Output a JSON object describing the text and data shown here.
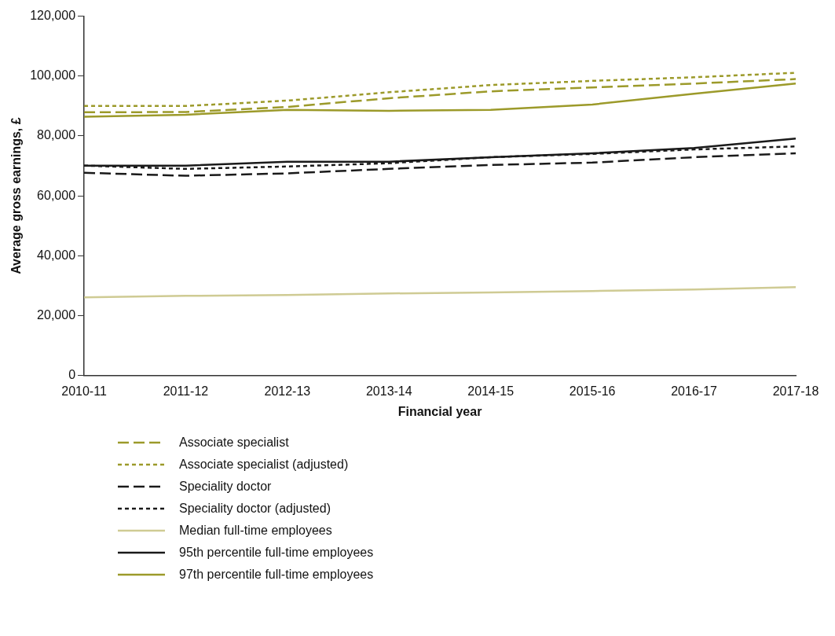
{
  "chart_data": {
    "type": "line",
    "xlabel": "Financial year",
    "ylabel": "Average gross earnings, £",
    "categories": [
      "2010-11",
      "2011-12",
      "2012-13",
      "2013-14",
      "2014-15",
      "2015-16",
      "2016-17",
      "2017-18"
    ],
    "ylim": [
      0,
      120000
    ],
    "yticks": [
      {
        "value": 0,
        "label": "0"
      },
      {
        "value": 20000,
        "label": "20,000"
      },
      {
        "value": 40000,
        "label": "40,000"
      },
      {
        "value": 60000,
        "label": "60,000"
      },
      {
        "value": 80000,
        "label": "80,000"
      },
      {
        "value": 100000,
        "label": "100,000"
      },
      {
        "value": 120000,
        "label": "120,000"
      }
    ],
    "grid": false,
    "legend": "bottom",
    "marker": "none",
    "series": [
      {
        "name": "Associate specialist",
        "color": "#9c9a2a",
        "line_style": "dashed",
        "values": [
          87900,
          88000,
          89700,
          92600,
          94900,
          96200,
          97500,
          99000
        ]
      },
      {
        "name": "Associate specialist (adjusted)",
        "color": "#9c9a2a",
        "line_style": "dotted",
        "values": [
          90000,
          90000,
          91800,
          94600,
          97000,
          98400,
          99600,
          101100
        ]
      },
      {
        "name": "Speciality doctor",
        "color": "#1a1a1a",
        "line_style": "dashed",
        "values": [
          67700,
          66700,
          67500,
          69000,
          70300,
          71100,
          72900,
          74200
        ]
      },
      {
        "name": "Speciality doctor (adjusted)",
        "color": "#1a1a1a",
        "line_style": "dotted",
        "values": [
          70100,
          69000,
          69800,
          70900,
          72900,
          74000,
          75500,
          76500
        ]
      },
      {
        "name": "Median full-time employees",
        "color": "#cfcb94",
        "line_style": "solid",
        "values": [
          26100,
          26600,
          26900,
          27400,
          27700,
          28200,
          28700,
          29500
        ]
      },
      {
        "name": "95th percentile full-time employees",
        "color": "#1a1a1a",
        "line_style": "solid",
        "values": [
          70100,
          70100,
          71400,
          71400,
          72900,
          74200,
          76000,
          79100
        ]
      },
      {
        "name": "97th percentile full-time employees",
        "color": "#9c9a2a",
        "line_style": "solid",
        "values": [
          86400,
          87100,
          88700,
          88400,
          88700,
          90500,
          94100,
          97500
        ]
      }
    ]
  }
}
